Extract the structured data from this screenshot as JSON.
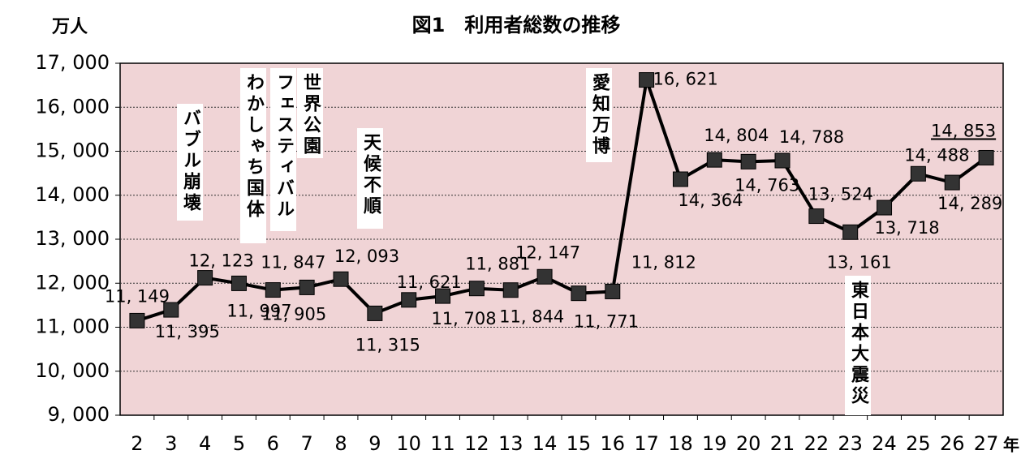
{
  "chart_data": {
    "type": "line",
    "title": "図1　利用者総数の推移",
    "y_label": "万人",
    "x_label": "年",
    "categories": [
      "2",
      "3",
      "4",
      "5",
      "6",
      "7",
      "8",
      "9",
      "10",
      "11",
      "12",
      "13",
      "14",
      "15",
      "16",
      "17",
      "18",
      "19",
      "20",
      "21",
      "22",
      "23",
      "24",
      "25",
      "26",
      "27"
    ],
    "series": [
      {
        "name": "利用者総数",
        "color": "#000000",
        "values": [
          11149,
          11395,
          12123,
          11997,
          11847,
          11905,
          12093,
          11315,
          11621,
          11708,
          11881,
          11844,
          12147,
          11771,
          11812,
          16621,
          14364,
          14804,
          14763,
          14788,
          13524,
          13161,
          13718,
          14488,
          14289,
          14853
        ],
        "value_labels": [
          "11, 149",
          "11, 395",
          "12, 123",
          "11, 997",
          "11, 847",
          "11, 905",
          "12, 093",
          "11, 315",
          "11, 621",
          "11, 708",
          "11, 881",
          "11, 844",
          "12, 147",
          "11, 771",
          "11, 812",
          "16, 621",
          "14, 364",
          "14, 804",
          "14, 763",
          "14, 788",
          "13, 524",
          "13, 161",
          "13, 718",
          "14, 488",
          "14, 289",
          "14, 853"
        ]
      }
    ],
    "ylim": [
      9000,
      17000
    ],
    "yticks": [
      {
        "value": 9000,
        "label": "9, 000"
      },
      {
        "value": 10000,
        "label": "10, 000"
      },
      {
        "value": 11000,
        "label": "11, 000"
      },
      {
        "value": 12000,
        "label": "12, 000"
      },
      {
        "value": 13000,
        "label": "13, 000"
      },
      {
        "value": 14000,
        "label": "14, 000"
      },
      {
        "value": 15000,
        "label": "15, 000"
      },
      {
        "value": 16000,
        "label": "16, 000"
      },
      {
        "value": 17000,
        "label": "17, 000"
      }
    ],
    "grid": true,
    "plot_background": "#f0d4d6",
    "annotations": [
      "バブル崩壊",
      "わかしゃち国体",
      "フェスティバル",
      "世界公園",
      "天候不順",
      "愛知万博",
      "東日本大震災"
    ]
  }
}
